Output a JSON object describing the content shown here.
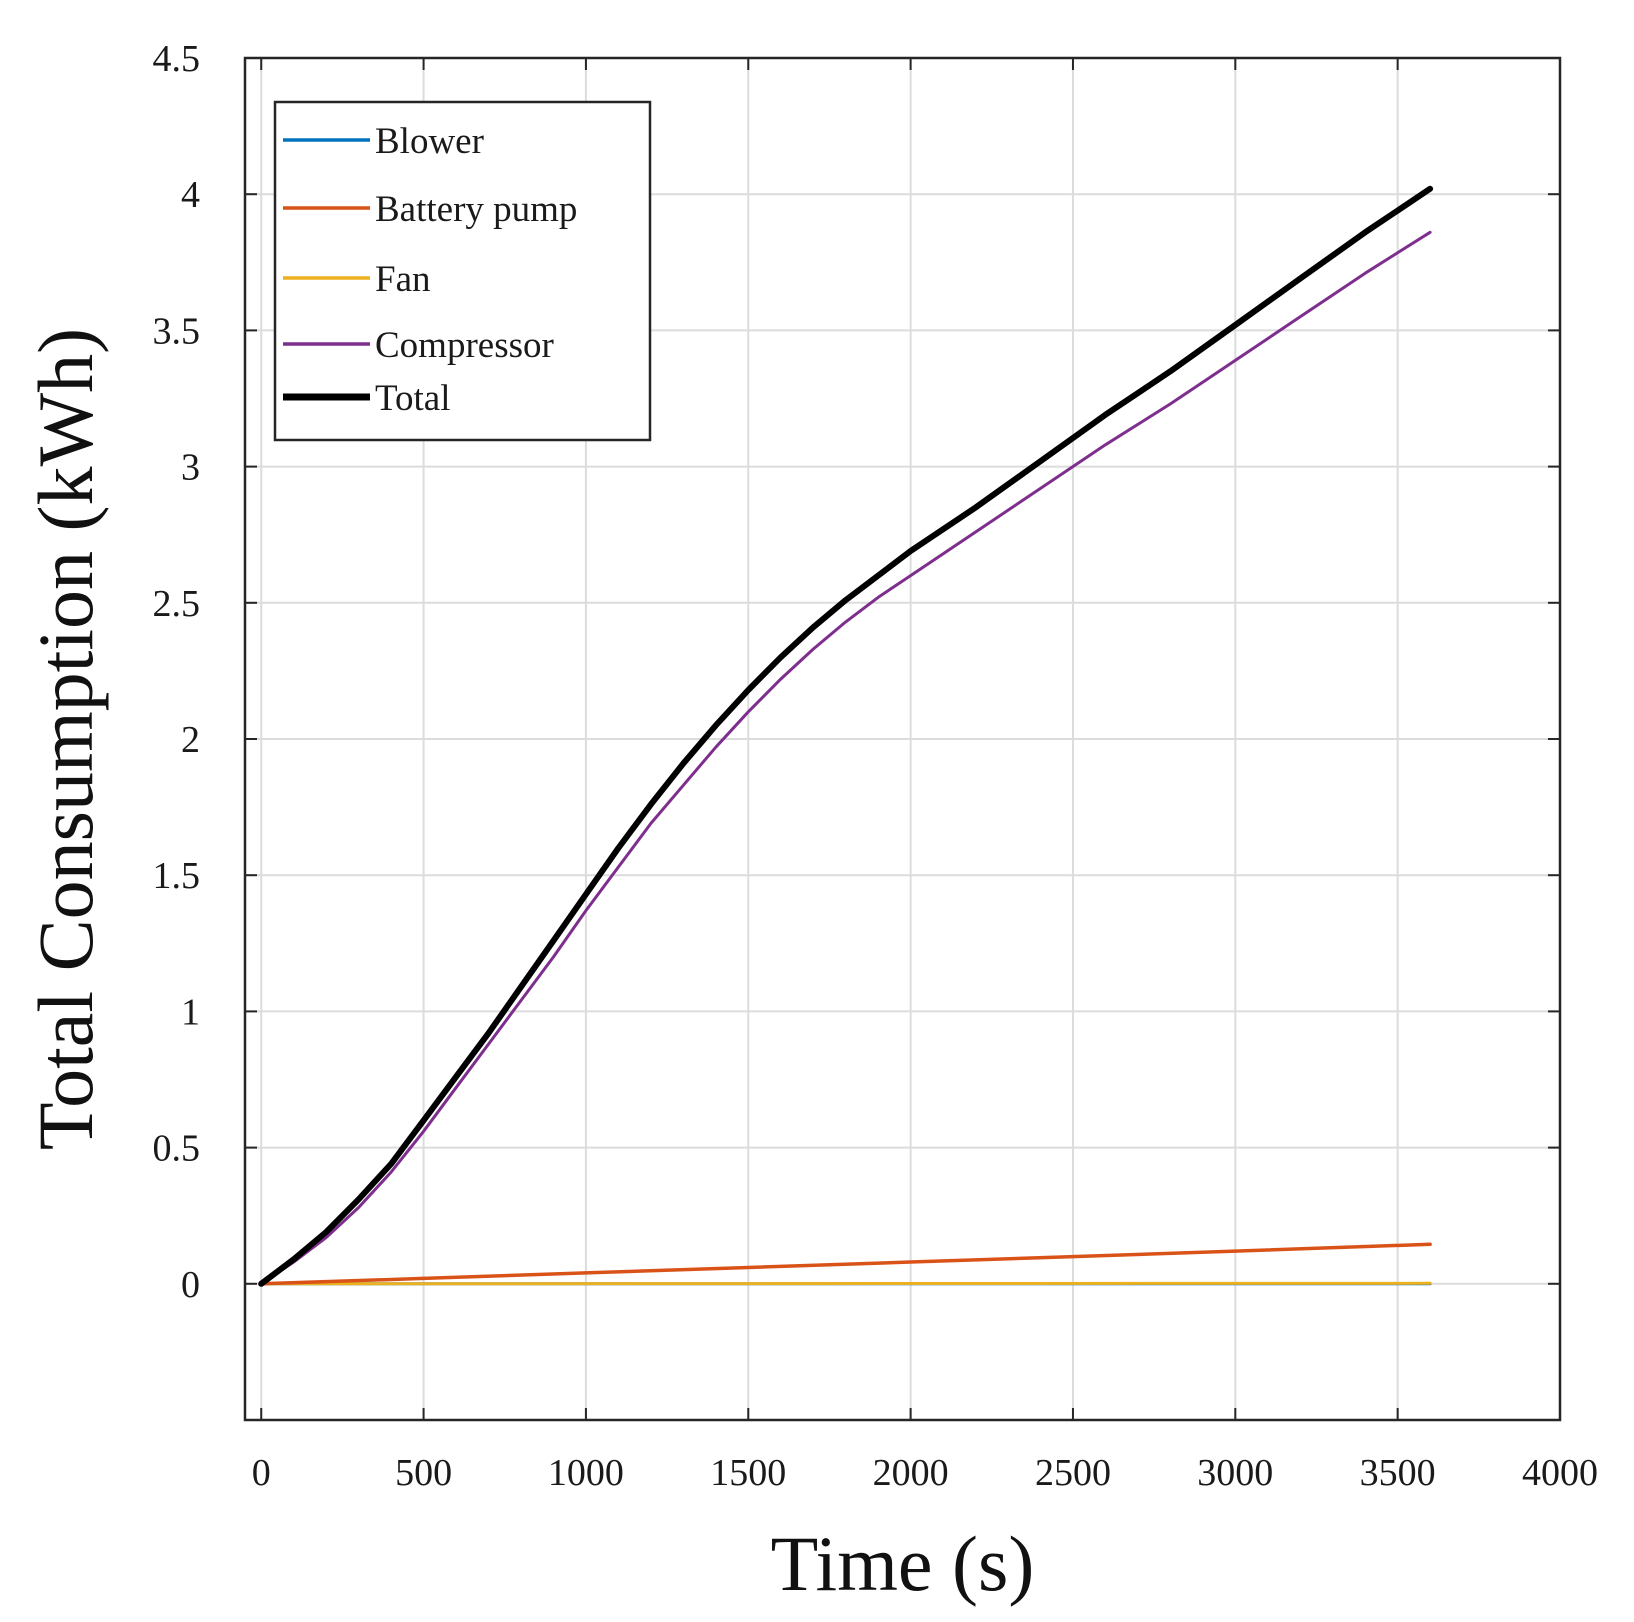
{
  "chart_data": {
    "type": "line",
    "xlabel": "Time (s)",
    "ylabel": "Total Consumption (kWh)",
    "xlim": [
      -50,
      4000
    ],
    "ylim": [
      -0.5,
      4.5
    ],
    "xticks": [
      0,
      500,
      1000,
      1500,
      2000,
      2500,
      3000,
      3500,
      4000
    ],
    "yticks": [
      0,
      0.5,
      1,
      1.5,
      2,
      2.5,
      3,
      3.5,
      4,
      4.5
    ],
    "xtick_labels": [
      "0",
      "500",
      "1000",
      "1500",
      "2000",
      "2500",
      "3000",
      "3500",
      "4000"
    ],
    "ytick_labels": [
      "0",
      "0.5",
      "1",
      "1.5",
      "2",
      "2.5",
      "3",
      "3.5",
      "4",
      "4.5"
    ],
    "grid": true,
    "legend_position": "top-left",
    "series": [
      {
        "name": "Blower",
        "color": "#0072BD",
        "x": [
          0,
          3600
        ],
        "y": [
          0,
          0
        ]
      },
      {
        "name": "Battery pump",
        "color": "#D95319",
        "x": [
          0,
          500,
          1000,
          1500,
          2000,
          2500,
          3000,
          3600
        ],
        "y": [
          0,
          0.02,
          0.04,
          0.06,
          0.08,
          0.1,
          0.12,
          0.145
        ]
      },
      {
        "name": "Fan",
        "color": "#EDB120",
        "x": [
          0,
          3600
        ],
        "y": [
          0,
          0.002
        ]
      },
      {
        "name": "Compressor",
        "color": "#7E2F8E",
        "x": [
          0,
          100,
          200,
          300,
          400,
          500,
          600,
          700,
          800,
          900,
          1000,
          1100,
          1200,
          1300,
          1400,
          1500,
          1600,
          1700,
          1800,
          1900,
          2000,
          2200,
          2400,
          2600,
          2800,
          3000,
          3200,
          3400,
          3600
        ],
        "y": [
          0,
          0.08,
          0.17,
          0.28,
          0.41,
          0.56,
          0.72,
          0.88,
          1.04,
          1.2,
          1.37,
          1.53,
          1.69,
          1.83,
          1.97,
          2.1,
          2.22,
          2.33,
          2.43,
          2.52,
          2.6,
          2.76,
          2.92,
          3.08,
          3.23,
          3.39,
          3.55,
          3.71,
          3.86
        ]
      },
      {
        "name": "Total",
        "color": "#000000",
        "x": [
          0,
          100,
          200,
          300,
          400,
          500,
          600,
          700,
          800,
          900,
          1000,
          1100,
          1200,
          1300,
          1400,
          1500,
          1600,
          1700,
          1800,
          1900,
          2000,
          2200,
          2400,
          2600,
          2800,
          3000,
          3200,
          3400,
          3600
        ],
        "y": [
          0,
          0.09,
          0.19,
          0.31,
          0.44,
          0.6,
          0.76,
          0.92,
          1.09,
          1.26,
          1.43,
          1.6,
          1.76,
          1.91,
          2.05,
          2.18,
          2.3,
          2.41,
          2.51,
          2.6,
          2.69,
          2.85,
          3.02,
          3.19,
          3.35,
          3.52,
          3.69,
          3.86,
          4.02
        ]
      }
    ]
  }
}
